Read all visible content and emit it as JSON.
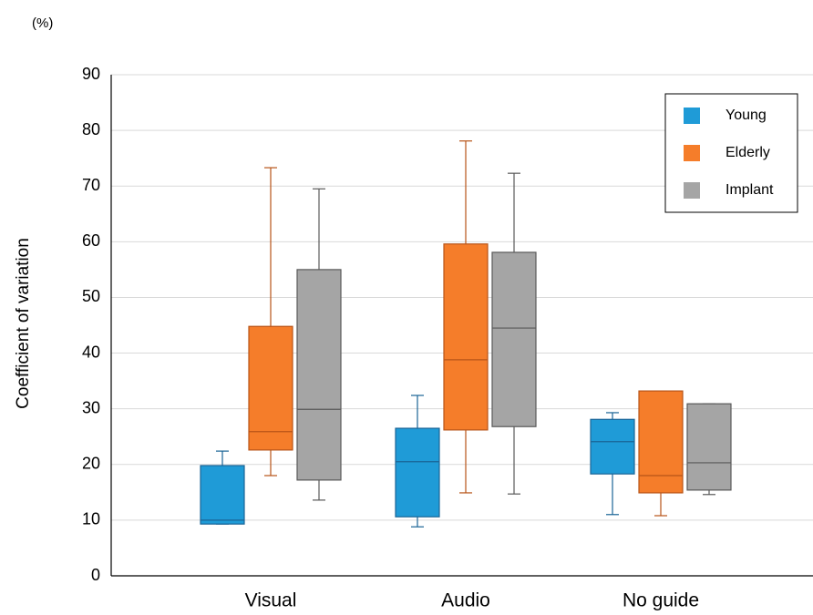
{
  "chart_data": {
    "type": "box",
    "unit": "(%)",
    "y_label": "Coefficient of variation",
    "categories": [
      "Visual",
      "Audio",
      "No guide"
    ],
    "series": [
      {
        "name": "Young",
        "color": "#1f9bd7",
        "edgecolor": "#1a6496",
        "values": [
          {
            "min": 9.3,
            "q1": 9.3,
            "median": 10.0,
            "q3": 19.8,
            "max": 22.4
          },
          {
            "min": 8.8,
            "q1": 10.6,
            "median": 20.5,
            "q3": 26.5,
            "max": 32.4
          },
          {
            "min": 11.0,
            "q1": 18.3,
            "median": 24.1,
            "q3": 28.1,
            "max": 29.3
          }
        ]
      },
      {
        "name": "Elderly",
        "color": "#f57d2a",
        "edgecolor": "#b85418",
        "values": [
          {
            "min": 18.0,
            "q1": 22.6,
            "median": 25.9,
            "q3": 44.8,
            "max": 73.3
          },
          {
            "min": 14.9,
            "q1": 26.2,
            "median": 38.8,
            "q3": 59.6,
            "max": 78.1
          },
          {
            "min": 10.8,
            "q1": 14.9,
            "median": 18.0,
            "q3": 33.2,
            "max": 33.2
          }
        ]
      },
      {
        "name": "Implant",
        "color": "#a5a5a5",
        "edgecolor": "#595959",
        "values": [
          {
            "min": 13.6,
            "q1": 17.2,
            "median": 29.9,
            "q3": 55.0,
            "max": 69.5
          },
          {
            "min": 14.7,
            "q1": 26.8,
            "median": 44.5,
            "q3": 58.1,
            "max": 72.3
          },
          {
            "min": 14.6,
            "q1": 15.4,
            "median": 20.3,
            "q3": 30.9,
            "max": 30.9
          }
        ]
      }
    ],
    "ylim": [
      0,
      90
    ],
    "yticks": [
      0,
      10,
      20,
      30,
      40,
      50,
      60,
      70,
      80,
      90
    ],
    "grid": true,
    "legend": "upper right"
  }
}
